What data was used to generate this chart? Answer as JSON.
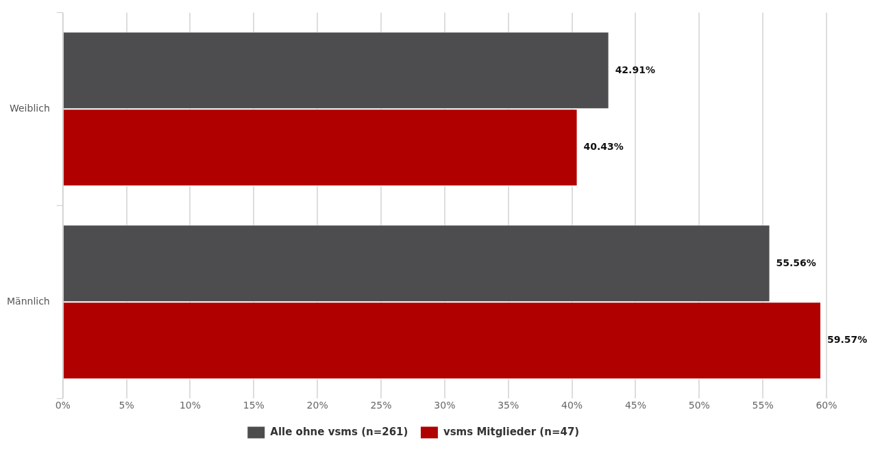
{
  "chart_data": {
    "type": "bar",
    "orientation": "horizontal",
    "categories": [
      "Weiblich",
      "Männlich"
    ],
    "series": [
      {
        "name": "Alle ohne vsms (n=261)",
        "color": "#4d4d4f",
        "values": [
          42.91,
          55.56
        ],
        "value_labels": [
          "42.91%",
          "55.56%"
        ]
      },
      {
        "name": "vsms Mitglieder (n=47)",
        "color": "#b00000",
        "values": [
          40.43,
          59.57
        ],
        "value_labels": [
          "40.43%",
          "59.57%"
        ]
      }
    ],
    "xlim": [
      0,
      60
    ],
    "xticks": [
      {
        "value": 0,
        "label": "0%"
      },
      {
        "value": 5,
        "label": "5%"
      },
      {
        "value": 10,
        "label": "10%"
      },
      {
        "value": 15,
        "label": "15%"
      },
      {
        "value": 20,
        "label": "20%"
      },
      {
        "value": 25,
        "label": "25%"
      },
      {
        "value": 30,
        "label": "30%"
      },
      {
        "value": 35,
        "label": "35%"
      },
      {
        "value": 40,
        "label": "40%"
      },
      {
        "value": 45,
        "label": "45%"
      },
      {
        "value": 50,
        "label": "50%"
      },
      {
        "value": 55,
        "label": "55%"
      },
      {
        "value": 60,
        "label": "60%"
      }
    ],
    "grid": "x",
    "legend": "bottom"
  }
}
